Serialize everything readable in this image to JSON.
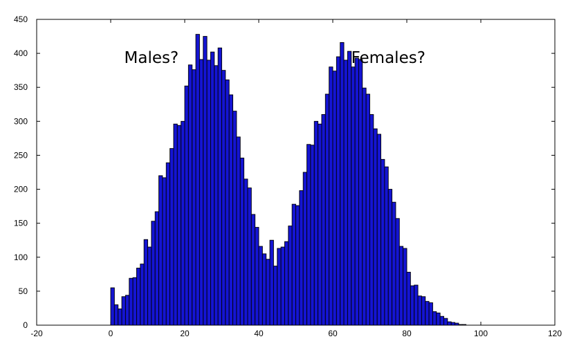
{
  "chart_data": {
    "type": "bar",
    "title": "",
    "xlabel": "",
    "ylabel": "",
    "xlim": [
      -20,
      120
    ],
    "ylim": [
      0,
      450
    ],
    "xticks": [
      "-20",
      "0",
      "20",
      "40",
      "60",
      "80",
      "100",
      "120"
    ],
    "yticks": [
      "0",
      "50",
      "100",
      "150",
      "200",
      "250",
      "300",
      "350",
      "400",
      "450"
    ],
    "grid": false,
    "bar_color": "#1414d2",
    "bin_width": 1,
    "bin_starts": [
      0,
      1,
      2,
      3,
      4,
      5,
      6,
      7,
      8,
      9,
      10,
      11,
      12,
      13,
      14,
      15,
      16,
      17,
      18,
      19,
      20,
      21,
      22,
      23,
      24,
      25,
      26,
      27,
      28,
      29,
      30,
      31,
      32,
      33,
      34,
      35,
      36,
      37,
      38,
      39,
      40,
      41,
      42,
      43,
      44,
      45,
      46,
      47,
      48,
      49,
      50,
      51,
      52,
      53,
      54,
      55,
      56,
      57,
      58,
      59,
      60,
      61,
      62,
      63,
      64,
      65,
      66,
      67,
      68,
      69,
      70,
      71,
      72,
      73,
      74,
      75,
      76,
      77,
      78,
      79,
      80,
      81,
      82,
      83,
      84,
      85,
      86,
      87,
      88,
      89,
      90,
      91,
      92,
      93,
      94,
      95,
      96,
      97,
      98,
      99
    ],
    "values": [
      55,
      30,
      24,
      42,
      44,
      69,
      70,
      84,
      90,
      126,
      115,
      153,
      167,
      220,
      217,
      239,
      260,
      296,
      294,
      300,
      352,
      383,
      376,
      428,
      391,
      425,
      390,
      402,
      382,
      408,
      375,
      361,
      339,
      315,
      277,
      246,
      215,
      202,
      163,
      144,
      116,
      105,
      97,
      125,
      87,
      113,
      115,
      123,
      146,
      178,
      176,
      198,
      225,
      266,
      265,
      300,
      296,
      310,
      340,
      380,
      374,
      395,
      416,
      390,
      403,
      380,
      393,
      391,
      349,
      340,
      310,
      289,
      281,
      244,
      233,
      200,
      181,
      157,
      116,
      113,
      78,
      58,
      59,
      43,
      42,
      35,
      33,
      20,
      18,
      13,
      10,
      5,
      4,
      3,
      1,
      1,
      0,
      0,
      0,
      0
    ],
    "annotations": [
      {
        "text": "Males?",
        "x": 11,
        "y": 386
      },
      {
        "text": "Females?",
        "x": 75,
        "y": 386
      }
    ]
  }
}
